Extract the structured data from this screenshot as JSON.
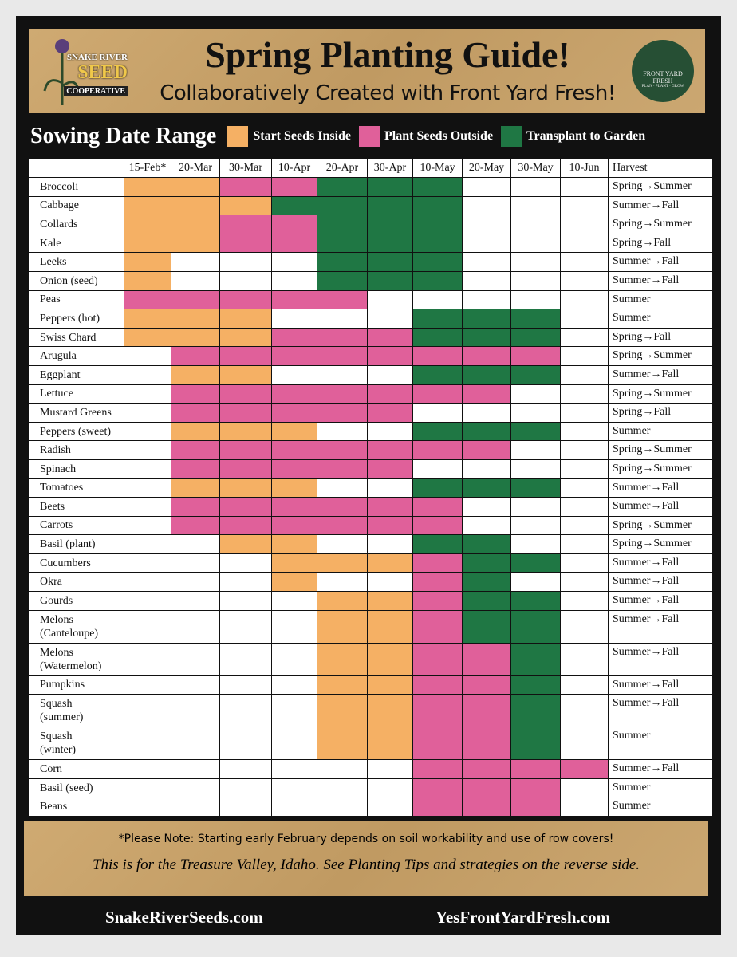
{
  "header": {
    "title": "Spring Planting Guide!",
    "subtitle": "Collaboratively Created with Front Yard Fresh!",
    "left_logo": [
      "SNAKE RIVER",
      "SEED",
      "COOPERATIVE"
    ],
    "right_logo": [
      "FRONT YARD",
      "FRESH",
      "PLAN · PLANT · GROW"
    ]
  },
  "legend": {
    "title": "Sowing Date Range",
    "items": [
      {
        "label": "Start Seeds Inside",
        "color": "#f5b064"
      },
      {
        "label": "Plant Seeds Outside",
        "color": "#e0609a"
      },
      {
        "label": "Transplant to Garden",
        "color": "#1f7744"
      }
    ]
  },
  "table": {
    "dates": [
      "15-Feb*",
      "20-Mar",
      "30-Mar",
      "10-Apr",
      "20-Apr",
      "30-Apr",
      "10-May",
      "20-May",
      "30-May",
      "10-Jun"
    ],
    "harvest_header": "Harvest",
    "rows": [
      {
        "crop": "Broccoli",
        "cells": [
          "#f5b064",
          "#f5b064",
          "#e0609a",
          "#e0609a",
          "#1f7744",
          "#1f7744",
          "#1f7744",
          null,
          null,
          null
        ],
        "harvest": "Spring→Summer"
      },
      {
        "crop": "Cabbage",
        "cells": [
          "#f5b064",
          "#f5b064",
          "#f5b064",
          "#1f7744",
          "#1f7744",
          "#1f7744",
          "#1f7744",
          null,
          null,
          null
        ],
        "harvest": "Summer→Fall"
      },
      {
        "crop": "Collards",
        "cells": [
          "#f5b064",
          "#f5b064",
          "#e0609a",
          "#e0609a",
          "#1f7744",
          "#1f7744",
          "#1f7744",
          null,
          null,
          null
        ],
        "harvest": "Spring→Summer"
      },
      {
        "crop": "Kale",
        "cells": [
          "#f5b064",
          "#f5b064",
          "#e0609a",
          "#e0609a",
          "#1f7744",
          "#1f7744",
          "#1f7744",
          null,
          null,
          null
        ],
        "harvest": "Spring→Fall"
      },
      {
        "crop": "Leeks",
        "cells": [
          "#f5b064",
          null,
          null,
          null,
          "#1f7744",
          "#1f7744",
          "#1f7744",
          null,
          null,
          null
        ],
        "harvest": "Summer→Fall"
      },
      {
        "crop": "Onion (seed)",
        "cells": [
          "#f5b064",
          null,
          null,
          null,
          "#1f7744",
          "#1f7744",
          "#1f7744",
          null,
          null,
          null
        ],
        "harvest": "Summer→Fall"
      },
      {
        "crop": "Peas",
        "cells": [
          "#e0609a",
          "#e0609a",
          "#e0609a",
          "#e0609a",
          "#e0609a",
          null,
          null,
          null,
          null,
          null
        ],
        "harvest": "Summer"
      },
      {
        "crop": "Peppers (hot)",
        "cells": [
          "#f5b064",
          "#f5b064",
          "#f5b064",
          null,
          null,
          null,
          "#1f7744",
          "#1f7744",
          "#1f7744",
          null
        ],
        "harvest": "Summer"
      },
      {
        "crop": "Swiss Chard",
        "cells": [
          "#f5b064",
          "#f5b064",
          "#f5b064",
          "#e0609a",
          "#e0609a",
          "#e0609a",
          "#1f7744",
          "#1f7744",
          "#1f7744",
          null
        ],
        "harvest": "Spring→Fall"
      },
      {
        "crop": "Arugula",
        "cells": [
          null,
          "#e0609a",
          "#e0609a",
          "#e0609a",
          "#e0609a",
          "#e0609a",
          "#e0609a",
          "#e0609a",
          "#e0609a",
          null
        ],
        "harvest": "Spring→Summer"
      },
      {
        "crop": "Eggplant",
        "cells": [
          null,
          "#f5b064",
          "#f5b064",
          null,
          null,
          null,
          "#1f7744",
          "#1f7744",
          "#1f7744",
          null
        ],
        "harvest": "Summer→Fall"
      },
      {
        "crop": "Lettuce",
        "cells": [
          null,
          "#e0609a",
          "#e0609a",
          "#e0609a",
          "#e0609a",
          "#e0609a",
          "#e0609a",
          "#e0609a",
          null,
          null
        ],
        "harvest": "Spring→Summer"
      },
      {
        "crop": "Mustard Greens",
        "cells": [
          null,
          "#e0609a",
          "#e0609a",
          "#e0609a",
          "#e0609a",
          "#e0609a",
          null,
          null,
          null,
          null
        ],
        "harvest": "Spring→Fall"
      },
      {
        "crop": "Peppers (sweet)",
        "cells": [
          null,
          "#f5b064",
          "#f5b064",
          "#f5b064",
          null,
          null,
          "#1f7744",
          "#1f7744",
          "#1f7744",
          null
        ],
        "harvest": "Summer"
      },
      {
        "crop": "Radish",
        "cells": [
          null,
          "#e0609a",
          "#e0609a",
          "#e0609a",
          "#e0609a",
          "#e0609a",
          "#e0609a",
          "#e0609a",
          null,
          null
        ],
        "harvest": "Spring→Summer"
      },
      {
        "crop": "Spinach",
        "cells": [
          null,
          "#e0609a",
          "#e0609a",
          "#e0609a",
          "#e0609a",
          "#e0609a",
          null,
          null,
          null,
          null
        ],
        "harvest": "Spring→Summer"
      },
      {
        "crop": "Tomatoes",
        "cells": [
          null,
          "#f5b064",
          "#f5b064",
          "#f5b064",
          null,
          null,
          "#1f7744",
          "#1f7744",
          "#1f7744",
          null
        ],
        "harvest": "Summer→Fall"
      },
      {
        "crop": "Beets",
        "cells": [
          null,
          "#e0609a",
          "#e0609a",
          "#e0609a",
          "#e0609a",
          "#e0609a",
          "#e0609a",
          null,
          null,
          null
        ],
        "harvest": "Summer→Fall"
      },
      {
        "crop": "Carrots",
        "cells": [
          null,
          "#e0609a",
          "#e0609a",
          "#e0609a",
          "#e0609a",
          "#e0609a",
          "#e0609a",
          null,
          null,
          null
        ],
        "harvest": "Spring→Summer"
      },
      {
        "crop": "Basil (plant)",
        "cells": [
          null,
          null,
          "#f5b064",
          "#f5b064",
          null,
          null,
          "#1f7744",
          "#1f7744",
          null,
          null
        ],
        "harvest": "Spring→Summer"
      },
      {
        "crop": "Cucumbers",
        "cells": [
          null,
          null,
          null,
          "#f5b064",
          "#f5b064",
          "#f5b064",
          "#e0609a",
          "#1f7744",
          "#1f7744",
          null
        ],
        "harvest": "Summer→Fall"
      },
      {
        "crop": "Okra",
        "cells": [
          null,
          null,
          null,
          "#f5b064",
          null,
          null,
          "#e0609a",
          "#1f7744",
          null,
          null
        ],
        "harvest": "Summer→Fall"
      },
      {
        "crop": "Gourds",
        "cells": [
          null,
          null,
          null,
          null,
          "#f5b064",
          "#f5b064",
          "#e0609a",
          "#1f7744",
          "#1f7744",
          null
        ],
        "harvest": "Summer→Fall"
      },
      {
        "crop": "Melons\n(Canteloupe)",
        "cells": [
          null,
          null,
          null,
          null,
          "#f5b064",
          "#f5b064",
          "#e0609a",
          "#1f7744",
          "#1f7744",
          null
        ],
        "harvest": "Summer→Fall"
      },
      {
        "crop": "Melons\n(Watermelon)",
        "cells": [
          null,
          null,
          null,
          null,
          "#f5b064",
          "#f5b064",
          "#e0609a",
          "#e0609a",
          "#1f7744",
          null
        ],
        "harvest": "Summer→Fall"
      },
      {
        "crop": "Pumpkins",
        "cells": [
          null,
          null,
          null,
          null,
          "#f5b064",
          "#f5b064",
          "#e0609a",
          "#e0609a",
          "#1f7744",
          null
        ],
        "harvest": "Summer→Fall"
      },
      {
        "crop": "Squash\n(summer)",
        "cells": [
          null,
          null,
          null,
          null,
          "#f5b064",
          "#f5b064",
          "#e0609a",
          "#e0609a",
          "#1f7744",
          null
        ],
        "harvest": "Summer→Fall"
      },
      {
        "crop": "Squash\n(winter)",
        "cells": [
          null,
          null,
          null,
          null,
          "#f5b064",
          "#f5b064",
          "#e0609a",
          "#e0609a",
          "#1f7744",
          null
        ],
        "harvest": "Summer"
      },
      {
        "crop": "Corn",
        "cells": [
          null,
          null,
          null,
          null,
          null,
          null,
          "#e0609a",
          "#e0609a",
          "#e0609a",
          "#e0609a"
        ],
        "harvest": "Summer→Fall"
      },
      {
        "crop": "Basil (seed)",
        "cells": [
          null,
          null,
          null,
          null,
          null,
          null,
          "#e0609a",
          "#e0609a",
          "#e0609a",
          null
        ],
        "harvest": "Summer"
      },
      {
        "crop": "Beans",
        "cells": [
          null,
          null,
          null,
          null,
          null,
          null,
          "#e0609a",
          "#e0609a",
          "#e0609a",
          null
        ],
        "harvest": "Summer"
      }
    ]
  },
  "footer": {
    "note": "*Please Note: Starting early February depends on soil workability and use of row covers!",
    "region": "This is for the Treasure Valley, Idaho. See Planting Tips and strategies on the reverse side.",
    "links": [
      "SnakeRiverSeeds.com",
      "YesFrontYardFresh.com"
    ]
  }
}
